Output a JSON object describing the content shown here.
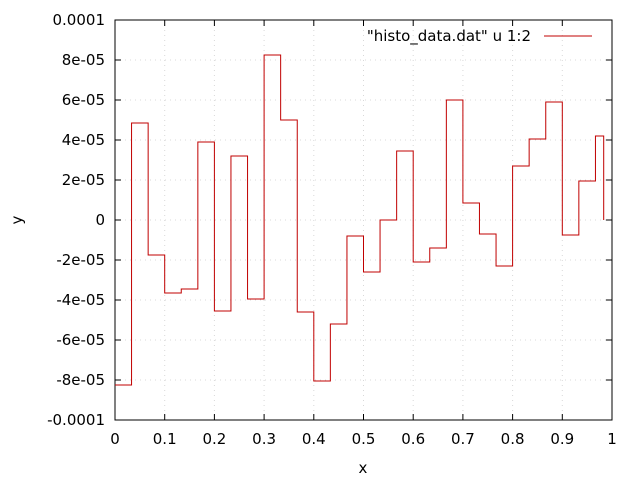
{
  "chart_data": {
    "type": "line",
    "style": "histogram-steps",
    "xlabel": "x",
    "ylabel": "y",
    "xlim": [
      0,
      1
    ],
    "ylim": [
      -0.0001,
      0.0001
    ],
    "x_ticks": [
      0,
      0.1,
      0.2,
      0.3,
      0.4,
      0.5,
      0.6,
      0.7,
      0.8,
      0.9,
      1
    ],
    "x_tick_labels": [
      "0",
      "0.1",
      "0.2",
      "0.3",
      "0.4",
      "0.5",
      "0.6",
      "0.7",
      "0.8",
      "0.9",
      "1"
    ],
    "y_ticks": [
      -0.0001,
      -8e-05,
      -6e-05,
      -4e-05,
      -2e-05,
      0,
      2e-05,
      4e-05,
      6e-05,
      8e-05,
      0.0001
    ],
    "y_tick_labels": [
      "-0.0001",
      "-8e-05",
      "-6e-05",
      "-4e-05",
      "-2e-05",
      "0",
      "2e-05",
      "4e-05",
      "6e-05",
      "8e-05",
      "0.0001"
    ],
    "grid": true,
    "legend_position": "top-right",
    "series": [
      {
        "name": "\"histo_data.dat\" u 1:2",
        "color": "#c00000",
        "x": [
          0,
          0.0333,
          0.0667,
          0.1,
          0.1333,
          0.1667,
          0.2,
          0.2333,
          0.2667,
          0.3,
          0.3333,
          0.3667,
          0.4,
          0.4333,
          0.4667,
          0.5,
          0.5333,
          0.5667,
          0.6,
          0.6333,
          0.6667,
          0.7,
          0.7333,
          0.7667,
          0.8,
          0.8333,
          0.8667,
          0.9,
          0.9333,
          0.9667
        ],
        "values": [
          -8.25e-05,
          4.85e-05,
          -1.75e-05,
          -3.65e-05,
          -3.45e-05,
          3.9e-05,
          -4.55e-05,
          3.2e-05,
          -3.95e-05,
          8.25e-05,
          5e-05,
          -4.6e-05,
          -8.05e-05,
          -5.2e-05,
          -8e-06,
          -2.6e-05,
          0,
          3.45e-05,
          -2.1e-05,
          -1.4e-05,
          6e-05,
          8.5e-06,
          -7e-06,
          -2.3e-05,
          2.7e-05,
          4.05e-05,
          5.9e-05,
          -7.5e-06,
          1.95e-05,
          4.2e-05
        ],
        "x_end": 0.9833,
        "end_value": 0
      }
    ]
  }
}
